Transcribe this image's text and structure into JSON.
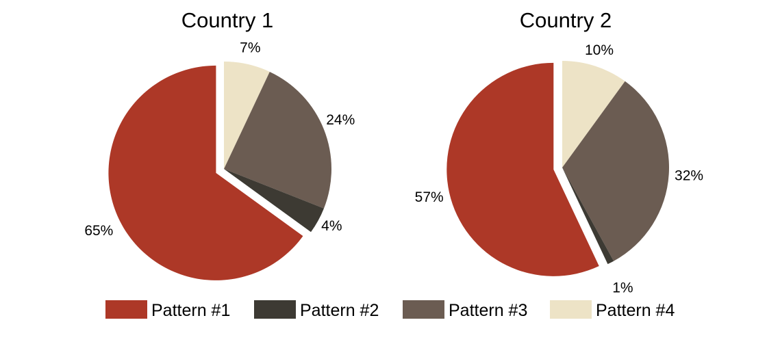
{
  "chart_data": [
    {
      "type": "pie",
      "title": "Country 1",
      "categories": [
        "Pattern #1",
        "Pattern #2",
        "Pattern #3",
        "Pattern #4"
      ],
      "values": [
        65,
        4,
        24,
        7
      ],
      "labels": [
        "65%",
        "4%",
        "24%",
        "7%"
      ],
      "exploded": "Pattern #1"
    },
    {
      "type": "pie",
      "title": "Country 2",
      "categories": [
        "Pattern #1",
        "Pattern #2",
        "Pattern #3",
        "Pattern #4"
      ],
      "values": [
        57,
        1,
        32,
        10
      ],
      "labels": [
        "57%",
        "1%",
        "32%",
        "10%"
      ],
      "exploded": "Pattern #1"
    }
  ],
  "legend": {
    "position": "bottom",
    "items": [
      {
        "label": "Pattern #1",
        "color": "#ad3827"
      },
      {
        "label": "Pattern #2",
        "color": "#3d3a33"
      },
      {
        "label": "Pattern #3",
        "color": "#6b5c52"
      },
      {
        "label": "Pattern #4",
        "color": "#ede3c6"
      }
    ]
  }
}
